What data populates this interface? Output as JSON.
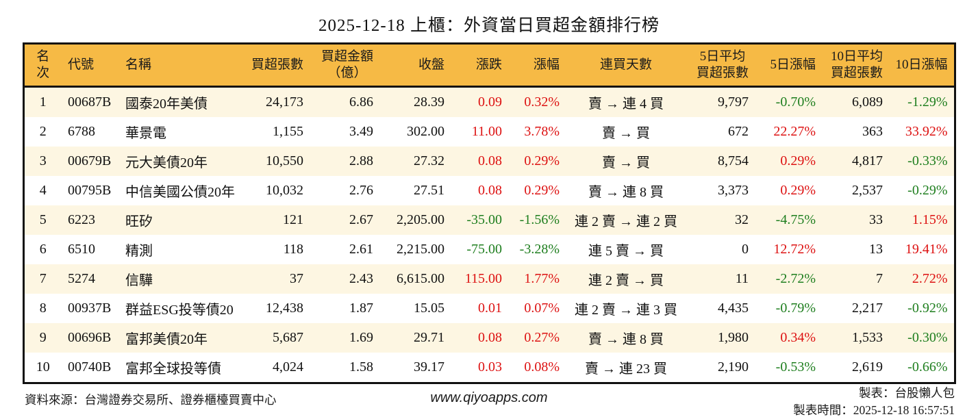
{
  "title": "2025-12-18 上櫃：外資當日買超金額排行榜",
  "colors": {
    "header_bg": "#f6ba45",
    "row_alt_bg": "#fdf6e2",
    "row_bg": "#ffffff",
    "border": "#111111",
    "up": "#dd1111",
    "down": "#1e7e1e"
  },
  "chart_data": {
    "type": "table",
    "title": "2025-12-18 上櫃：外資當日買超金額排行榜",
    "columns": [
      "名次",
      "代號",
      "名稱",
      "買超張數",
      "買超金額\n（億）",
      "收盤",
      "漲跌",
      "漲幅",
      "連買天數",
      "5日平均\n買超張數",
      "5日漲幅",
      "10日平均\n買超張數",
      "10日漲幅"
    ],
    "rows": [
      [
        "1",
        "00687B",
        "國泰20年美債",
        "24,173",
        "6.86",
        "28.39",
        {
          "t": "0.09",
          "c": "up"
        },
        {
          "t": "0.32%",
          "c": "up"
        },
        "賣 → 連 4 買",
        "9,797",
        {
          "t": "-0.70%",
          "c": "down"
        },
        "6,089",
        {
          "t": "-1.29%",
          "c": "down"
        }
      ],
      [
        "2",
        "6788",
        "華景電",
        "1,155",
        "3.49",
        "302.00",
        {
          "t": "11.00",
          "c": "up"
        },
        {
          "t": "3.78%",
          "c": "up"
        },
        "賣 → 買",
        "672",
        {
          "t": "22.27%",
          "c": "up"
        },
        "363",
        {
          "t": "33.92%",
          "c": "up"
        }
      ],
      [
        "3",
        "00679B",
        "元大美債20年",
        "10,550",
        "2.88",
        "27.32",
        {
          "t": "0.08",
          "c": "up"
        },
        {
          "t": "0.29%",
          "c": "up"
        },
        "賣 → 買",
        "8,754",
        {
          "t": "0.29%",
          "c": "up"
        },
        "4,817",
        {
          "t": "-0.33%",
          "c": "down"
        }
      ],
      [
        "4",
        "00795B",
        "中信美國公債20年",
        "10,032",
        "2.76",
        "27.51",
        {
          "t": "0.08",
          "c": "up"
        },
        {
          "t": "0.29%",
          "c": "up"
        },
        "賣 → 連 8 買",
        "3,373",
        {
          "t": "0.29%",
          "c": "up"
        },
        "2,537",
        {
          "t": "-0.29%",
          "c": "down"
        }
      ],
      [
        "5",
        "6223",
        "旺矽",
        "121",
        "2.67",
        "2,205.00",
        {
          "t": "-35.00",
          "c": "down"
        },
        {
          "t": "-1.56%",
          "c": "down"
        },
        "連 2 賣 → 連 2 買",
        "32",
        {
          "t": "-4.75%",
          "c": "down"
        },
        "33",
        {
          "t": "1.15%",
          "c": "up"
        }
      ],
      [
        "6",
        "6510",
        "精測",
        "118",
        "2.61",
        "2,215.00",
        {
          "t": "-75.00",
          "c": "down"
        },
        {
          "t": "-3.28%",
          "c": "down"
        },
        "連 5 賣 → 買",
        "0",
        {
          "t": "12.72%",
          "c": "up"
        },
        "13",
        {
          "t": "19.41%",
          "c": "up"
        }
      ],
      [
        "7",
        "5274",
        "信驊",
        "37",
        "2.43",
        "6,615.00",
        {
          "t": "115.00",
          "c": "up"
        },
        {
          "t": "1.77%",
          "c": "up"
        },
        "連 2 賣 → 買",
        "11",
        {
          "t": "-2.72%",
          "c": "down"
        },
        "7",
        {
          "t": "2.72%",
          "c": "up"
        }
      ],
      [
        "8",
        "00937B",
        "群益ESG投等債20",
        "12,438",
        "1.87",
        "15.05",
        {
          "t": "0.01",
          "c": "up"
        },
        {
          "t": "0.07%",
          "c": "up"
        },
        "連 2 賣 → 連 3 買",
        "4,435",
        {
          "t": "-0.79%",
          "c": "down"
        },
        "2,217",
        {
          "t": "-0.92%",
          "c": "down"
        }
      ],
      [
        "9",
        "00696B",
        "富邦美債20年",
        "5,687",
        "1.69",
        "29.71",
        {
          "t": "0.08",
          "c": "up"
        },
        {
          "t": "0.27%",
          "c": "up"
        },
        "賣 → 連 8 買",
        "1,980",
        {
          "t": "0.34%",
          "c": "up"
        },
        "1,533",
        {
          "t": "-0.30%",
          "c": "down"
        }
      ],
      [
        "10",
        "00740B",
        "富邦全球投等債",
        "4,024",
        "1.58",
        "39.17",
        {
          "t": "0.03",
          "c": "up"
        },
        {
          "t": "0.08%",
          "c": "up"
        },
        "賣 → 連 23 買",
        "2,190",
        {
          "t": "-0.53%",
          "c": "down"
        },
        "2,619",
        {
          "t": "-0.66%",
          "c": "down"
        }
      ]
    ]
  },
  "footer": {
    "source": "資料來源：台灣證券交易所、證券櫃檯買賣中心",
    "website": "www.qiyoapps.com",
    "credit": "製表：台股懶人包",
    "generated_at": "製表時間：2025-12-18 16:57:51"
  }
}
